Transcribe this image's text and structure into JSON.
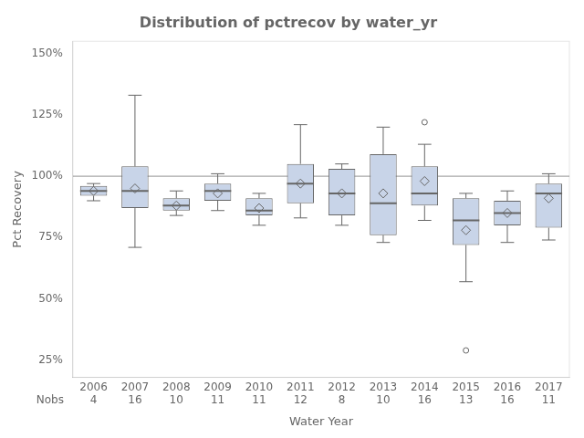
{
  "chart_data": {
    "type": "box",
    "title": "Distribution of pctrecov by water_yr",
    "xlabel": "Water Year",
    "ylabel": "Pct Recovery",
    "categories": [
      "2006",
      "2007",
      "2008",
      "2009",
      "2010",
      "2011",
      "2012",
      "2013",
      "2014",
      "2015",
      "2016",
      "2017"
    ],
    "q1": [
      92,
      87,
      86,
      90,
      84,
      89,
      84,
      76,
      88,
      72,
      80,
      79
    ],
    "median": [
      94,
      94,
      88,
      94,
      86,
      97,
      93,
      89,
      93,
      82,
      85,
      93
    ],
    "q3": [
      96,
      104,
      91,
      97,
      91,
      105,
      103,
      109,
      104,
      91,
      90,
      97
    ],
    "whislo": [
      90,
      71,
      84,
      86,
      80,
      83,
      80,
      73,
      82,
      57,
      73,
      74
    ],
    "whishi": [
      97,
      133,
      94,
      101,
      93,
      121,
      105,
      120,
      113,
      93,
      94,
      101
    ],
    "mean": [
      94,
      95,
      88,
      93,
      87,
      97,
      93,
      93,
      98,
      78,
      85,
      91
    ],
    "fliers": [
      [],
      [],
      [],
      [],
      [],
      [],
      [],
      [],
      [
        122
      ],
      [
        29
      ],
      [],
      []
    ],
    "nobs": [
      4,
      16,
      10,
      11,
      11,
      12,
      8,
      10,
      16,
      13,
      16,
      11
    ],
    "nobs_label": "Nobs",
    "hline_y": 100,
    "color": "#c8d4e8",
    "ylim": [
      18,
      155
    ],
    "yticks": [
      {
        "value": 25,
        "label": "25%"
      },
      {
        "value": 50,
        "label": "50%"
      },
      {
        "value": 75,
        "label": "75%"
      },
      {
        "value": 100,
        "label": "100%"
      },
      {
        "value": 125,
        "label": "125%"
      },
      {
        "value": 150,
        "label": "150%"
      }
    ],
    "grid": false
  }
}
